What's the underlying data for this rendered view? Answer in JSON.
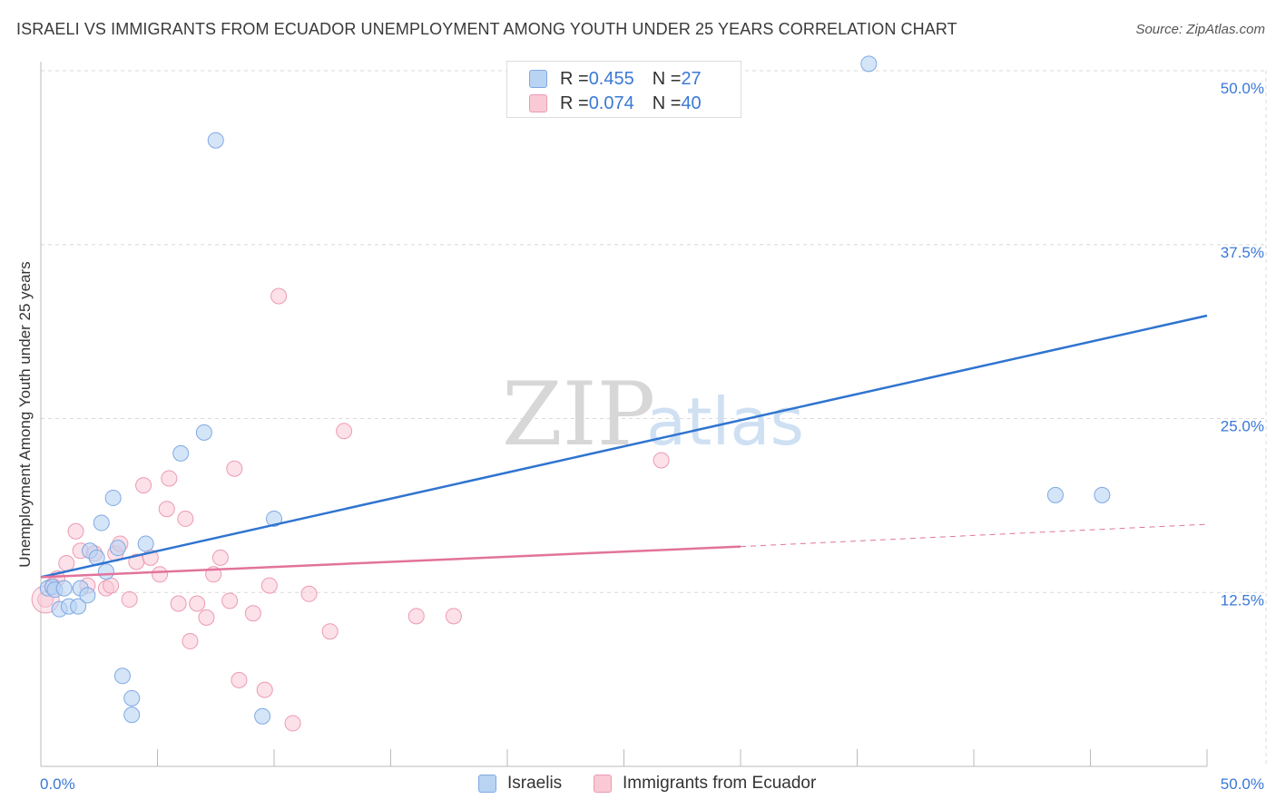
{
  "title": "ISRAELI VS IMMIGRANTS FROM ECUADOR UNEMPLOYMENT AMONG YOUTH UNDER 25 YEARS CORRELATION CHART",
  "source": "Source: ZipAtlas.com",
  "watermark": {
    "zip": "ZIP",
    "atlas": "atlas"
  },
  "legend_top": {
    "rows": [
      {
        "r_label": "R = ",
        "r_value": "0.455",
        "n_label": "N = ",
        "n_value": "27"
      },
      {
        "r_label": "R = ",
        "r_value": "0.074",
        "n_label": "N = ",
        "n_value": "40"
      }
    ]
  },
  "legend_bottom": {
    "series1": "Israelis",
    "series2": "Immigrants from Ecuador"
  },
  "colors": {
    "blue_fill": "#b9d3f3",
    "blue_stroke": "#7fa9e3",
    "blue_line": "#2f74d0",
    "pink_fill": "#f9c9d6",
    "pink_stroke": "#ec9ab3",
    "pink_line": "#e2739b",
    "tick_label": "#3a78d6",
    "grid": "#d9d9d9"
  },
  "chart_data": {
    "type": "scatter",
    "title": "ISRAELI VS IMMIGRANTS FROM ECUADOR UNEMPLOYMENT AMONG YOUTH UNDER 25 YEARS CORRELATION CHART",
    "xlabel": "",
    "ylabel": "Unemployment Among Youth under 25 years",
    "xlim": [
      0,
      50
    ],
    "ylim": [
      0,
      50
    ],
    "x_tick_labels": [
      "0.0%",
      "50.0%"
    ],
    "y_ticks": [
      12.5,
      25.0,
      37.5,
      50.0
    ],
    "y_tick_labels": [
      "12.5%",
      "25.0%",
      "37.5%",
      "50.0%"
    ],
    "grid": true,
    "series": [
      {
        "name": "Israelis",
        "r": 0.455,
        "n": 27,
        "points": [
          [
            0.3,
            12.8
          ],
          [
            0.5,
            12.9
          ],
          [
            0.6,
            12.7
          ],
          [
            0.8,
            11.3
          ],
          [
            1.0,
            12.8
          ],
          [
            1.2,
            11.5
          ],
          [
            1.6,
            11.5
          ],
          [
            1.7,
            12.8
          ],
          [
            2.0,
            12.3
          ],
          [
            2.1,
            15.5
          ],
          [
            2.4,
            15.0
          ],
          [
            2.8,
            14.0
          ],
          [
            3.1,
            19.3
          ],
          [
            3.3,
            15.7
          ],
          [
            2.6,
            17.5
          ],
          [
            4.5,
            16.0
          ],
          [
            6.0,
            22.5
          ],
          [
            7.0,
            24.0
          ],
          [
            7.5,
            45.0
          ],
          [
            3.5,
            6.5
          ],
          [
            3.9,
            4.9
          ],
          [
            3.9,
            3.7
          ],
          [
            9.5,
            3.6
          ],
          [
            10.0,
            17.8
          ],
          [
            35.5,
            50.5
          ],
          [
            43.5,
            19.5
          ],
          [
            45.5,
            19.5
          ]
        ],
        "trend": {
          "x": [
            0,
            50
          ],
          "y": [
            13.6,
            32.4
          ]
        }
      },
      {
        "name": "Immigrants from Ecuador",
        "r": 0.074,
        "n": 40,
        "points": [
          [
            0.2,
            12.0
          ],
          [
            0.5,
            13.0
          ],
          [
            0.7,
            13.5
          ],
          [
            1.1,
            14.6
          ],
          [
            1.5,
            16.9
          ],
          [
            1.7,
            15.5
          ],
          [
            2.0,
            13.0
          ],
          [
            2.3,
            15.3
          ],
          [
            2.8,
            12.8
          ],
          [
            3.0,
            13.0
          ],
          [
            3.2,
            15.3
          ],
          [
            3.4,
            16.0
          ],
          [
            3.8,
            12.0
          ],
          [
            4.1,
            14.7
          ],
          [
            4.4,
            20.2
          ],
          [
            4.7,
            15.0
          ],
          [
            5.1,
            13.8
          ],
          [
            5.4,
            18.5
          ],
          [
            5.5,
            20.7
          ],
          [
            5.9,
            11.7
          ],
          [
            6.2,
            17.8
          ],
          [
            6.4,
            9.0
          ],
          [
            6.7,
            11.7
          ],
          [
            7.1,
            10.7
          ],
          [
            7.4,
            13.8
          ],
          [
            7.7,
            15.0
          ],
          [
            8.1,
            11.9
          ],
          [
            8.3,
            21.4
          ],
          [
            8.5,
            6.2
          ],
          [
            9.1,
            11.0
          ],
          [
            9.6,
            5.5
          ],
          [
            9.8,
            13.0
          ],
          [
            10.2,
            33.8
          ],
          [
            10.8,
            3.1
          ],
          [
            11.5,
            12.4
          ],
          [
            12.4,
            9.7
          ],
          [
            13.0,
            24.1
          ],
          [
            16.1,
            10.8
          ],
          [
            17.7,
            10.8
          ],
          [
            26.6,
            22.0
          ]
        ],
        "trend": {
          "x": [
            0,
            30
          ],
          "y": [
            13.6,
            15.8
          ]
        },
        "trend_dashed": {
          "x": [
            30,
            50
          ],
          "y": [
            15.8,
            17.4
          ]
        }
      }
    ]
  }
}
